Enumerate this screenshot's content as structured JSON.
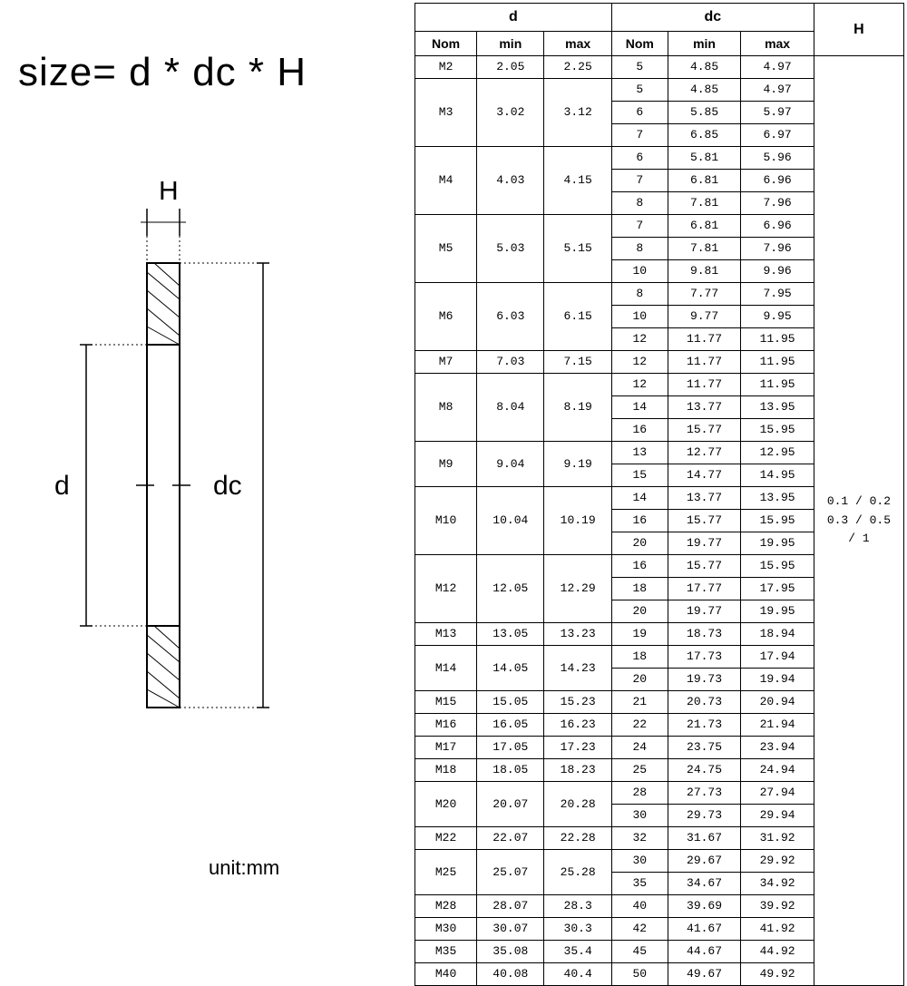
{
  "formula": "size= d * dc * H",
  "unit": "unit:mm",
  "diagram": {
    "label_H": "H",
    "label_d": "d",
    "label_dc": "dc"
  },
  "table": {
    "group_headers": [
      "d",
      "dc",
      "H"
    ],
    "sub_headers": [
      "Nom",
      "min",
      "max",
      "Nom",
      "min",
      "max"
    ],
    "h_value": "0.1 / 0.2\n0.3 / 0.5\n/ 1",
    "groups": [
      {
        "d_nom": "M2",
        "d_min": "2.05",
        "d_max": "2.25",
        "dc": [
          {
            "nom": "5",
            "min": "4.85",
            "max": "4.97"
          }
        ]
      },
      {
        "d_nom": "M3",
        "d_min": "3.02",
        "d_max": "3.12",
        "dc": [
          {
            "nom": "5",
            "min": "4.85",
            "max": "4.97"
          },
          {
            "nom": "6",
            "min": "5.85",
            "max": "5.97"
          },
          {
            "nom": "7",
            "min": "6.85",
            "max": "6.97"
          }
        ]
      },
      {
        "d_nom": "M4",
        "d_min": "4.03",
        "d_max": "4.15",
        "dc": [
          {
            "nom": "6",
            "min": "5.81",
            "max": "5.96"
          },
          {
            "nom": "7",
            "min": "6.81",
            "max": "6.96"
          },
          {
            "nom": "8",
            "min": "7.81",
            "max": "7.96"
          }
        ]
      },
      {
        "d_nom": "M5",
        "d_min": "5.03",
        "d_max": "5.15",
        "dc": [
          {
            "nom": "7",
            "min": "6.81",
            "max": "6.96"
          },
          {
            "nom": "8",
            "min": "7.81",
            "max": "7.96"
          },
          {
            "nom": "10",
            "min": "9.81",
            "max": "9.96"
          }
        ]
      },
      {
        "d_nom": "M6",
        "d_min": "6.03",
        "d_max": "6.15",
        "dc": [
          {
            "nom": "8",
            "min": "7.77",
            "max": "7.95"
          },
          {
            "nom": "10",
            "min": "9.77",
            "max": "9.95"
          },
          {
            "nom": "12",
            "min": "11.77",
            "max": "11.95"
          }
        ]
      },
      {
        "d_nom": "M7",
        "d_min": "7.03",
        "d_max": "7.15",
        "dc": [
          {
            "nom": "12",
            "min": "11.77",
            "max": "11.95"
          }
        ]
      },
      {
        "d_nom": "M8",
        "d_min": "8.04",
        "d_max": "8.19",
        "dc": [
          {
            "nom": "12",
            "min": "11.77",
            "max": "11.95"
          },
          {
            "nom": "14",
            "min": "13.77",
            "max": "13.95"
          },
          {
            "nom": "16",
            "min": "15.77",
            "max": "15.95"
          }
        ]
      },
      {
        "d_nom": "M9",
        "d_min": "9.04",
        "d_max": "9.19",
        "dc": [
          {
            "nom": "13",
            "min": "12.77",
            "max": "12.95"
          },
          {
            "nom": "15",
            "min": "14.77",
            "max": "14.95"
          }
        ]
      },
      {
        "d_nom": "M10",
        "d_min": "10.04",
        "d_max": "10.19",
        "dc": [
          {
            "nom": "14",
            "min": "13.77",
            "max": "13.95"
          },
          {
            "nom": "16",
            "min": "15.77",
            "max": "15.95"
          },
          {
            "nom": "20",
            "min": "19.77",
            "max": "19.95"
          }
        ]
      },
      {
        "d_nom": "M12",
        "d_min": "12.05",
        "d_max": "12.29",
        "dc": [
          {
            "nom": "16",
            "min": "15.77",
            "max": "15.95"
          },
          {
            "nom": "18",
            "min": "17.77",
            "max": "17.95"
          },
          {
            "nom": "20",
            "min": "19.77",
            "max": "19.95"
          }
        ]
      },
      {
        "d_nom": "M13",
        "d_min": "13.05",
        "d_max": "13.23",
        "dc": [
          {
            "nom": "19",
            "min": "18.73",
            "max": "18.94"
          }
        ]
      },
      {
        "d_nom": "M14",
        "d_min": "14.05",
        "d_max": "14.23",
        "dc": [
          {
            "nom": "18",
            "min": "17.73",
            "max": "17.94"
          },
          {
            "nom": "20",
            "min": "19.73",
            "max": "19.94"
          }
        ]
      },
      {
        "d_nom": "M15",
        "d_min": "15.05",
        "d_max": "15.23",
        "dc": [
          {
            "nom": "21",
            "min": "20.73",
            "max": "20.94"
          }
        ]
      },
      {
        "d_nom": "M16",
        "d_min": "16.05",
        "d_max": "16.23",
        "dc": [
          {
            "nom": "22",
            "min": "21.73",
            "max": "21.94"
          }
        ]
      },
      {
        "d_nom": "M17",
        "d_min": "17.05",
        "d_max": "17.23",
        "dc": [
          {
            "nom": "24",
            "min": "23.75",
            "max": "23.94"
          }
        ]
      },
      {
        "d_nom": "M18",
        "d_min": "18.05",
        "d_max": "18.23",
        "dc": [
          {
            "nom": "25",
            "min": "24.75",
            "max": "24.94"
          }
        ]
      },
      {
        "d_nom": "M20",
        "d_min": "20.07",
        "d_max": "20.28",
        "dc": [
          {
            "nom": "28",
            "min": "27.73",
            "max": "27.94"
          },
          {
            "nom": "30",
            "min": "29.73",
            "max": "29.94"
          }
        ]
      },
      {
        "d_nom": "M22",
        "d_min": "22.07",
        "d_max": "22.28",
        "dc": [
          {
            "nom": "32",
            "min": "31.67",
            "max": "31.92"
          }
        ]
      },
      {
        "d_nom": "M25",
        "d_min": "25.07",
        "d_max": "25.28",
        "dc": [
          {
            "nom": "30",
            "min": "29.67",
            "max": "29.92"
          },
          {
            "nom": "35",
            "min": "34.67",
            "max": "34.92"
          }
        ]
      },
      {
        "d_nom": "M28",
        "d_min": "28.07",
        "d_max": "28.3",
        "dc": [
          {
            "nom": "40",
            "min": "39.69",
            "max": "39.92"
          }
        ]
      },
      {
        "d_nom": "M30",
        "d_min": "30.07",
        "d_max": "30.3",
        "dc": [
          {
            "nom": "42",
            "min": "41.67",
            "max": "41.92"
          }
        ]
      },
      {
        "d_nom": "M35",
        "d_min": "35.08",
        "d_max": "35.4",
        "dc": [
          {
            "nom": "45",
            "min": "44.67",
            "max": "44.92"
          }
        ]
      },
      {
        "d_nom": "M40",
        "d_min": "40.08",
        "d_max": "40.4",
        "dc": [
          {
            "nom": "50",
            "min": "49.67",
            "max": "49.92"
          }
        ]
      }
    ]
  },
  "styling": {
    "background": "#ffffff",
    "text_color": "#000000",
    "border_color": "#000000",
    "formula_fontsize": 44,
    "table_fontsize": 14,
    "header_font": "Arial",
    "body_font": "Courier New"
  }
}
